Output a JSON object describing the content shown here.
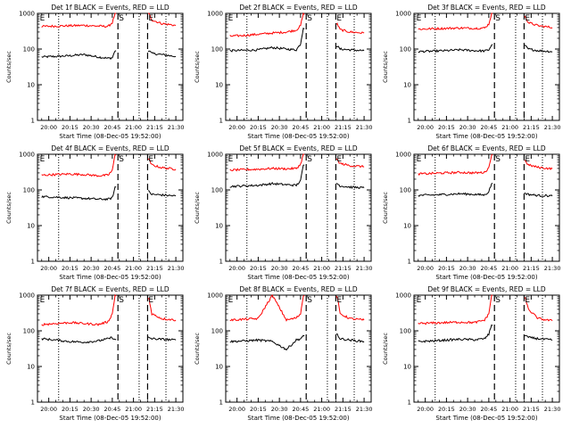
{
  "figure": {
    "ylabel": "Counts/sec",
    "xlabel": "Start Time (08-Dec-05 19:52:00)",
    "time_ticks": [
      "20:00",
      "20:15",
      "20:30",
      "20:45",
      "21:00",
      "21:15",
      "21:30"
    ],
    "y_ticks": [
      "1",
      "10",
      "100",
      "1000"
    ],
    "colors": {
      "events": "#000000",
      "lld": "#ff0000",
      "axes": "#000000",
      "background": "#ffffff"
    }
  },
  "chart_data": [
    {
      "type": "line",
      "detector": "1f",
      "title": "Det 1f BLACK = Events, RED = LLD",
      "xlabel": "Start Time (08-Dec-05 19:52:00)",
      "ylabel": "Counts/sec",
      "xlim": [
        "19:52",
        "21:35"
      ],
      "ylim": [
        1,
        1000
      ],
      "yscale": "log",
      "markers": [
        {
          "label": "E",
          "time": "19:53"
        },
        {
          "label": "S",
          "time": "20:49"
        },
        {
          "label": "E",
          "time": "21:10"
        }
      ],
      "dashed_lines": [
        "20:49",
        "21:10"
      ],
      "dotted_lines": [
        "20:07",
        "21:04",
        "21:23"
      ],
      "series": [
        {
          "name": "Events",
          "color": "#000000",
          "x": [
            "19:55",
            "20:05",
            "20:15",
            "20:25",
            "20:35",
            "20:42",
            "20:45",
            "20:47",
            "21:11",
            "21:13",
            "21:20",
            "21:30"
          ],
          "values": [
            60,
            62,
            65,
            70,
            60,
            55,
            57,
            90,
            90,
            75,
            70,
            62
          ]
        },
        {
          "name": "LLD",
          "color": "#ff0000",
          "x": [
            "19:55",
            "20:05",
            "20:15",
            "20:25",
            "20:35",
            "20:42",
            "20:45",
            "20:47",
            "21:11",
            "21:13",
            "21:20",
            "21:30"
          ],
          "values": [
            430,
            440,
            450,
            460,
            440,
            430,
            550,
            1000,
            1000,
            650,
            520,
            460
          ]
        }
      ]
    },
    {
      "type": "line",
      "detector": "2f",
      "title": "Det 2f BLACK = Events, RED = LLD",
      "xlabel": "Start Time (08-Dec-05 19:52:00)",
      "ylabel": "Counts/sec",
      "xlim": [
        "19:52",
        "21:35"
      ],
      "ylim": [
        1,
        1000
      ],
      "yscale": "log",
      "markers": [
        {
          "label": "E",
          "time": "19:53"
        },
        {
          "label": "S",
          "time": "20:49"
        },
        {
          "label": "E",
          "time": "21:10"
        }
      ],
      "dashed_lines": [
        "20:49",
        "21:10"
      ],
      "dotted_lines": [
        "20:07",
        "21:04",
        "21:23"
      ],
      "series": [
        {
          "name": "Events",
          "color": "#000000",
          "x": [
            "19:55",
            "20:05",
            "20:15",
            "20:25",
            "20:35",
            "20:42",
            "20:45",
            "20:47",
            "21:11",
            "21:13",
            "21:20",
            "21:30"
          ],
          "values": [
            90,
            92,
            95,
            110,
            100,
            95,
            140,
            400,
            120,
            100,
            95,
            90
          ]
        },
        {
          "name": "LLD",
          "color": "#ff0000",
          "x": [
            "19:55",
            "20:05",
            "20:15",
            "20:25",
            "20:35",
            "20:42",
            "20:45",
            "20:47",
            "21:11",
            "21:13",
            "21:20",
            "21:30"
          ],
          "values": [
            230,
            240,
            260,
            280,
            300,
            340,
            450,
            1000,
            500,
            350,
            300,
            280
          ]
        }
      ]
    },
    {
      "type": "line",
      "detector": "3f",
      "title": "Det 3f BLACK = Events, RED = LLD",
      "xlabel": "Start Time (08-Dec-05 19:52:00)",
      "ylabel": "Counts/sec",
      "xlim": [
        "19:52",
        "21:35"
      ],
      "ylim": [
        1,
        1000
      ],
      "yscale": "log",
      "markers": [
        {
          "label": "E",
          "time": "19:53"
        },
        {
          "label": "S",
          "time": "20:49"
        },
        {
          "label": "E",
          "time": "21:10"
        }
      ],
      "dashed_lines": [
        "20:49",
        "21:10"
      ],
      "dotted_lines": [
        "20:07",
        "21:04",
        "21:23"
      ],
      "series": [
        {
          "name": "Events",
          "color": "#000000",
          "x": [
            "19:55",
            "20:05",
            "20:15",
            "20:25",
            "20:35",
            "20:42",
            "20:45",
            "20:47",
            "21:11",
            "21:13",
            "21:20",
            "21:30"
          ],
          "values": [
            85,
            87,
            90,
            95,
            90,
            88,
            95,
            130,
            120,
            100,
            90,
            85
          ]
        },
        {
          "name": "LLD",
          "color": "#ff0000",
          "x": [
            "19:55",
            "20:05",
            "20:15",
            "20:25",
            "20:35",
            "20:42",
            "20:45",
            "20:47",
            "21:11",
            "21:13",
            "21:20",
            "21:30"
          ],
          "values": [
            360,
            370,
            380,
            390,
            380,
            390,
            500,
            1000,
            800,
            550,
            450,
            400
          ]
        }
      ]
    },
    {
      "type": "line",
      "detector": "4f",
      "title": "Det 4f BLACK = Events, RED = LLD",
      "xlabel": "Start Time (08-Dec-05 19:52:00)",
      "ylabel": "Counts/sec",
      "xlim": [
        "19:52",
        "21:35"
      ],
      "ylim": [
        1,
        1000
      ],
      "yscale": "log",
      "markers": [
        {
          "label": "E",
          "time": "19:53"
        },
        {
          "label": "S",
          "time": "20:49"
        },
        {
          "label": "E",
          "time": "21:10"
        }
      ],
      "dashed_lines": [
        "20:49",
        "21:10"
      ],
      "dotted_lines": [
        "20:07",
        "21:04",
        "21:23"
      ],
      "series": [
        {
          "name": "Events",
          "color": "#000000",
          "x": [
            "19:55",
            "20:05",
            "20:15",
            "20:25",
            "20:35",
            "20:42",
            "20:45",
            "20:47",
            "21:11",
            "21:13",
            "21:20",
            "21:30"
          ],
          "values": [
            65,
            63,
            60,
            58,
            55,
            55,
            60,
            120,
            90,
            75,
            72,
            68
          ]
        },
        {
          "name": "LLD",
          "color": "#ff0000",
          "x": [
            "19:55",
            "20:05",
            "20:15",
            "20:25",
            "20:35",
            "20:42",
            "20:45",
            "20:47",
            "21:11",
            "21:13",
            "21:20",
            "21:30"
          ],
          "values": [
            260,
            270,
            280,
            270,
            250,
            260,
            350,
            1000,
            700,
            500,
            420,
            380
          ]
        }
      ]
    },
    {
      "type": "line",
      "detector": "5f",
      "title": "Det 5f BLACK = Events, RED = LLD",
      "xlabel": "Start Time (08-Dec-05 19:52:00)",
      "ylabel": "Counts/sec",
      "xlim": [
        "19:52",
        "21:35"
      ],
      "ylim": [
        1,
        1000
      ],
      "yscale": "log",
      "markers": [
        {
          "label": "E",
          "time": "19:53"
        },
        {
          "label": "S",
          "time": "20:49"
        },
        {
          "label": "E",
          "time": "21:10"
        }
      ],
      "dashed_lines": [
        "20:49",
        "21:10"
      ],
      "dotted_lines": [
        "20:07",
        "21:04",
        "21:23"
      ],
      "series": [
        {
          "name": "Events",
          "color": "#000000",
          "x": [
            "19:55",
            "20:05",
            "20:15",
            "20:25",
            "20:35",
            "20:42",
            "20:45",
            "20:47",
            "21:11",
            "21:13",
            "21:20",
            "21:30"
          ],
          "values": [
            125,
            130,
            135,
            150,
            140,
            135,
            180,
            500,
            150,
            130,
            120,
            115
          ]
        },
        {
          "name": "LLD",
          "color": "#ff0000",
          "x": [
            "19:55",
            "20:05",
            "20:15",
            "20:25",
            "20:35",
            "20:42",
            "20:45",
            "20:47",
            "21:11",
            "21:13",
            "21:20",
            "21:30"
          ],
          "values": [
            360,
            370,
            380,
            400,
            390,
            400,
            520,
            1000,
            700,
            550,
            480,
            450
          ]
        }
      ]
    },
    {
      "type": "line",
      "detector": "6f",
      "title": "Det 6f BLACK = Events, RED = LLD",
      "xlabel": "Start Time (08-Dec-05 19:52:00)",
      "ylabel": "Counts/sec",
      "xlim": [
        "19:52",
        "21:35"
      ],
      "ylim": [
        1,
        1000
      ],
      "yscale": "log",
      "markers": [
        {
          "label": "E",
          "time": "19:53"
        },
        {
          "label": "S",
          "time": "20:49"
        },
        {
          "label": "E",
          "time": "21:10"
        }
      ],
      "dashed_lines": [
        "20:49",
        "21:10"
      ],
      "dotted_lines": [
        "20:07",
        "21:04",
        "21:23"
      ],
      "series": [
        {
          "name": "Events",
          "color": "#000000",
          "x": [
            "19:55",
            "20:05",
            "20:15",
            "20:25",
            "20:35",
            "20:42",
            "20:45",
            "20:47",
            "21:11",
            "21:13",
            "21:20",
            "21:30"
          ],
          "values": [
            70,
            72,
            75,
            78,
            75,
            72,
            90,
            150,
            80,
            75,
            70,
            68
          ]
        },
        {
          "name": "LLD",
          "color": "#ff0000",
          "x": [
            "19:55",
            "20:05",
            "20:15",
            "20:25",
            "20:35",
            "20:42",
            "20:45",
            "20:47",
            "21:11",
            "21:13",
            "21:20",
            "21:30"
          ],
          "values": [
            280,
            290,
            300,
            310,
            300,
            310,
            420,
            1000,
            650,
            500,
            430,
            390
          ]
        }
      ]
    },
    {
      "type": "line",
      "detector": "7f",
      "title": "Det 7f BLACK = Events, RED = LLD",
      "xlabel": "Start Time (08-Dec-05 19:52:00)",
      "ylabel": "Counts/sec",
      "xlim": [
        "19:52",
        "21:35"
      ],
      "ylim": [
        1,
        1000
      ],
      "yscale": "log",
      "markers": [
        {
          "label": "E",
          "time": "19:53"
        },
        {
          "label": "S",
          "time": "20:49"
        },
        {
          "label": "E",
          "time": "21:10"
        }
      ],
      "dashed_lines": [
        "20:49",
        "21:10"
      ],
      "dotted_lines": [
        "20:07",
        "21:04",
        "21:23"
      ],
      "series": [
        {
          "name": "Events",
          "color": "#000000",
          "x": [
            "19:55",
            "20:05",
            "20:15",
            "20:25",
            "20:35",
            "20:42",
            "20:45",
            "20:47",
            "21:11",
            "21:13",
            "21:20",
            "21:30"
          ],
          "values": [
            60,
            55,
            50,
            48,
            52,
            60,
            65,
            55,
            65,
            60,
            58,
            55
          ]
        },
        {
          "name": "LLD",
          "color": "#ff0000",
          "x": [
            "19:55",
            "20:05",
            "20:15",
            "20:25",
            "20:35",
            "20:42",
            "20:45",
            "20:47",
            "21:11",
            "21:13",
            "21:20",
            "21:30"
          ],
          "values": [
            150,
            160,
            170,
            160,
            150,
            180,
            300,
            1000,
            800,
            300,
            220,
            200
          ]
        }
      ]
    },
    {
      "type": "line",
      "detector": "8f",
      "title": "Det 8f BLACK = Events, RED = LLD",
      "xlabel": "Start Time (08-Dec-05 19:52:00)",
      "ylabel": "Counts/sec",
      "xlim": [
        "19:52",
        "21:35"
      ],
      "ylim": [
        1,
        1000
      ],
      "yscale": "log",
      "markers": [
        {
          "label": "E",
          "time": "19:53"
        },
        {
          "label": "S",
          "time": "20:49"
        },
        {
          "label": "E",
          "time": "21:10"
        }
      ],
      "dashed_lines": [
        "20:49",
        "21:10"
      ],
      "dotted_lines": [
        "20:07",
        "21:04",
        "21:23"
      ],
      "series": [
        {
          "name": "Events",
          "color": "#000000",
          "x": [
            "19:55",
            "20:05",
            "20:15",
            "20:25",
            "20:35",
            "20:42",
            "20:45",
            "20:47",
            "21:11",
            "21:13",
            "21:20",
            "21:30"
          ],
          "values": [
            50,
            52,
            55,
            50,
            30,
            55,
            60,
            70,
            80,
            60,
            55,
            50
          ]
        },
        {
          "name": "LLD",
          "color": "#ff0000",
          "x": [
            "19:55",
            "20:05",
            "20:15",
            "20:25",
            "20:35",
            "20:42",
            "20:45",
            "20:47",
            "21:11",
            "21:13",
            "21:20",
            "21:30"
          ],
          "values": [
            200,
            210,
            220,
            1000,
            200,
            230,
            300,
            1000,
            900,
            300,
            220,
            200
          ]
        }
      ]
    },
    {
      "type": "line",
      "detector": "9f",
      "title": "Det 9f BLACK = Events, RED = LLD",
      "xlabel": "Start Time (08-Dec-05 19:52:00)",
      "ylabel": "Counts/sec",
      "xlim": [
        "19:52",
        "21:35"
      ],
      "ylim": [
        1,
        1000
      ],
      "yscale": "log",
      "markers": [
        {
          "label": "E",
          "time": "19:53"
        },
        {
          "label": "S",
          "time": "20:49"
        },
        {
          "label": "E",
          "time": "21:10"
        }
      ],
      "dashed_lines": [
        "20:49",
        "21:10"
      ],
      "dotted_lines": [
        "20:07",
        "21:04",
        "21:23"
      ],
      "series": [
        {
          "name": "Events",
          "color": "#000000",
          "x": [
            "19:55",
            "20:05",
            "20:15",
            "20:25",
            "20:35",
            "20:42",
            "20:45",
            "20:47",
            "21:11",
            "21:13",
            "21:20",
            "21:30"
          ],
          "values": [
            50,
            52,
            55,
            58,
            56,
            60,
            80,
            150,
            75,
            65,
            60,
            55
          ]
        },
        {
          "name": "LLD",
          "color": "#ff0000",
          "x": [
            "19:55",
            "20:05",
            "20:15",
            "20:25",
            "20:35",
            "20:42",
            "20:45",
            "20:47",
            "21:11",
            "21:13",
            "21:20",
            "21:30"
          ],
          "values": [
            160,
            165,
            170,
            175,
            170,
            200,
            300,
            1000,
            800,
            400,
            220,
            190
          ]
        }
      ]
    }
  ]
}
